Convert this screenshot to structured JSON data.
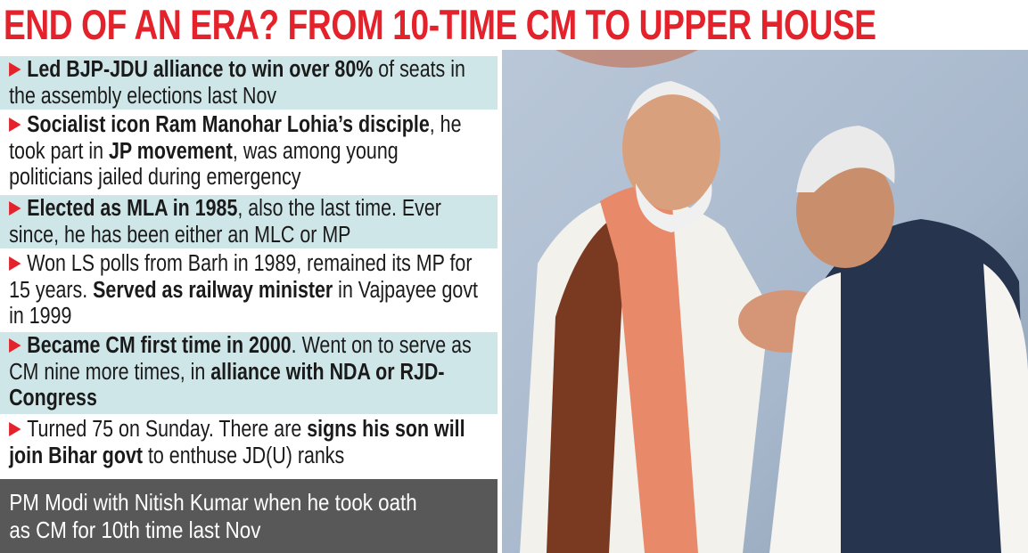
{
  "header": {
    "title": "END OF AN ERA? FROM 10-TIME CM TO UPPER HOUSE"
  },
  "bullets": [
    {
      "segments": [
        {
          "text": "Led BJP-JDU alliance to win over 80%",
          "bold": true
        },
        {
          "text": " of seats in the assembly elections last Nov",
          "bold": false
        }
      ]
    },
    {
      "segments": [
        {
          "text": "Socialist icon Ram Manohar Lohia’s disciple",
          "bold": true
        },
        {
          "text": ", he took part in ",
          "bold": false
        },
        {
          "text": "JP movement",
          "bold": true
        },
        {
          "text": ", was among young politicians jailed during emergency",
          "bold": false
        }
      ]
    },
    {
      "segments": [
        {
          "text": "Elected as MLA in 1985",
          "bold": true
        },
        {
          "text": ", also the last time. Ever since, he has been either an MLC or MP",
          "bold": false
        }
      ]
    },
    {
      "segments": [
        {
          "text": "Won LS polls from Barh in 1989, remained its MP for 15 years. ",
          "bold": false
        },
        {
          "text": "Served as railway minister",
          "bold": true
        },
        {
          "text": " in Vajpayee govt in 1999",
          "bold": false
        }
      ]
    },
    {
      "segments": [
        {
          "text": "Became CM first time in 2000",
          "bold": true
        },
        {
          "text": ". Went on to serve as CM nine more times, in ",
          "bold": false
        },
        {
          "text": "alliance with NDA or RJD-Congress",
          "bold": true
        }
      ]
    },
    {
      "segments": [
        {
          "text": "Turned 75 on Sunday. There are ",
          "bold": false
        },
        {
          "text": "signs his son will join Bihar govt",
          "bold": true
        },
        {
          "text": " to enthuse JD(U) ranks",
          "bold": false
        }
      ]
    }
  ],
  "caption": "PM Modi with Nitish Kumar when he took oath as CM for 10th time last Nov"
}
